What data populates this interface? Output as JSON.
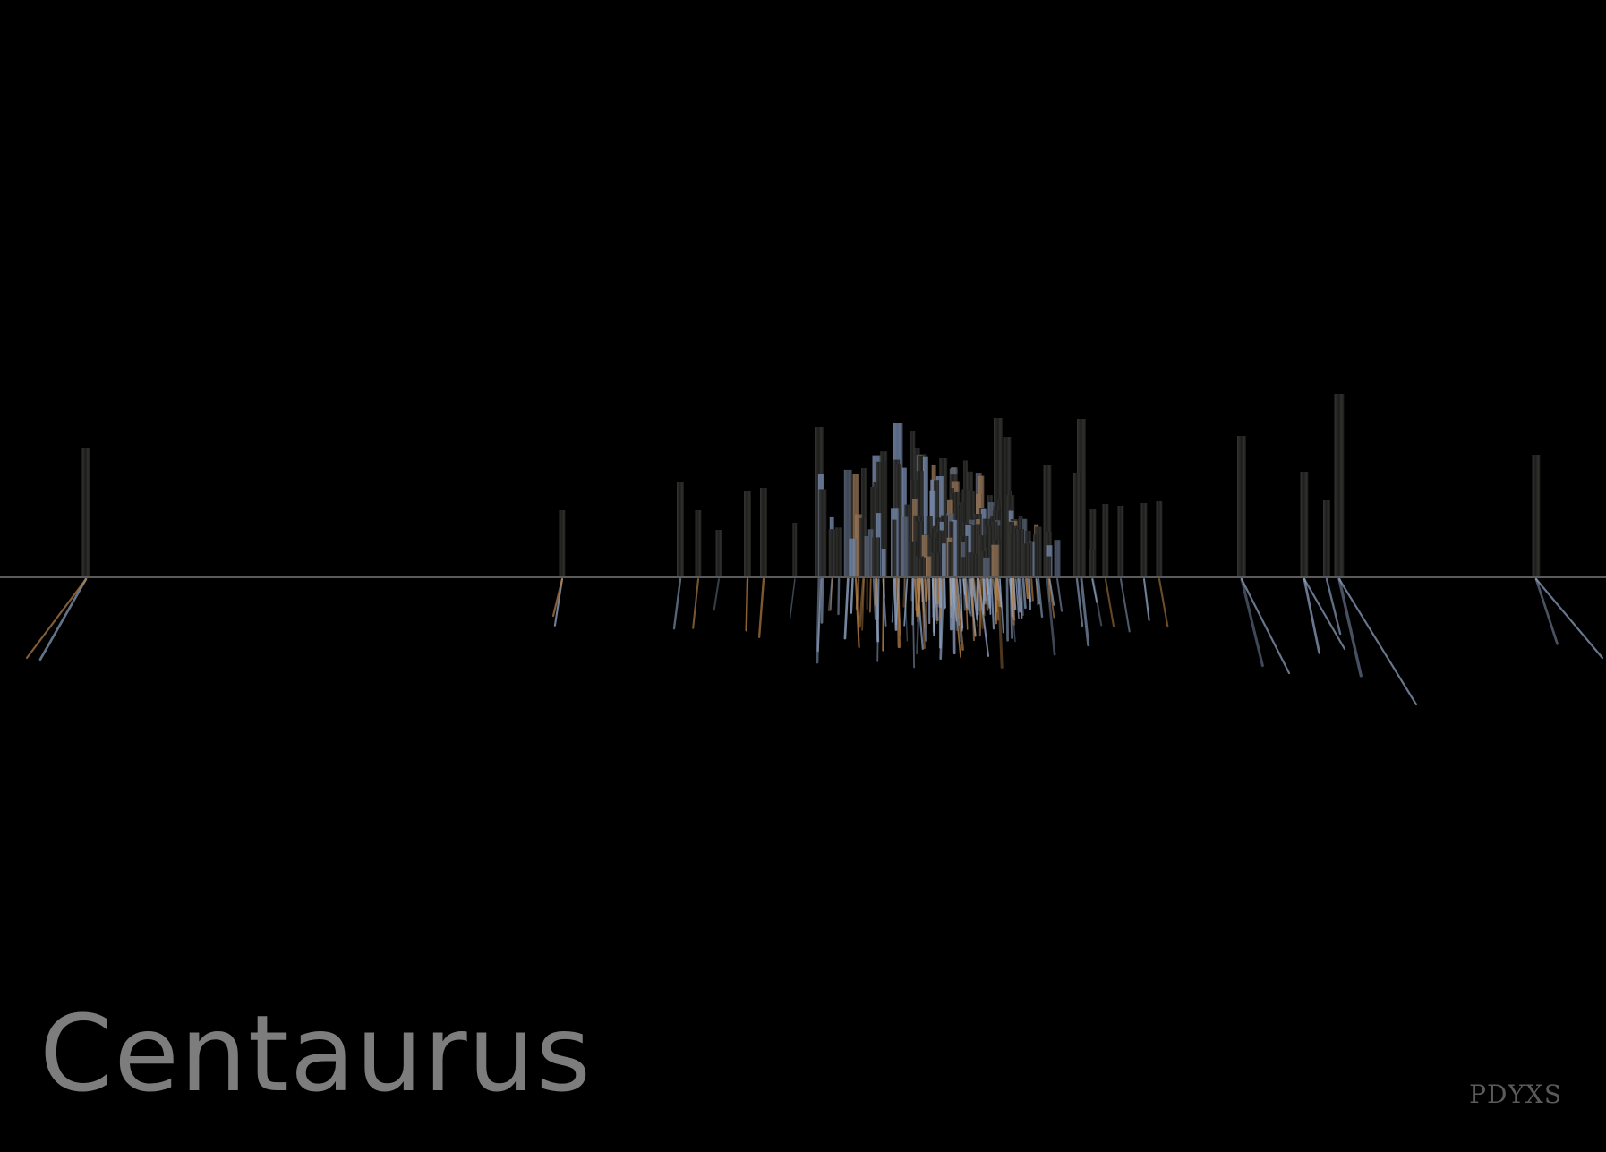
{
  "title": "Centaurus",
  "brand": "PDYXS",
  "colors": {
    "background": "#000000",
    "horizon": "#5a5a5a",
    "pillar_dark": "#1d1e1b",
    "pillar_steel": "#4c586b",
    "pillar_blue": "#6b7fa4",
    "pillar_amber": "#8a6848",
    "reflection_blue": "#93a8c8",
    "reflection_amber": "#b8834a",
    "title": "#7d7d7d",
    "brand": "#5b5b5b"
  }
}
